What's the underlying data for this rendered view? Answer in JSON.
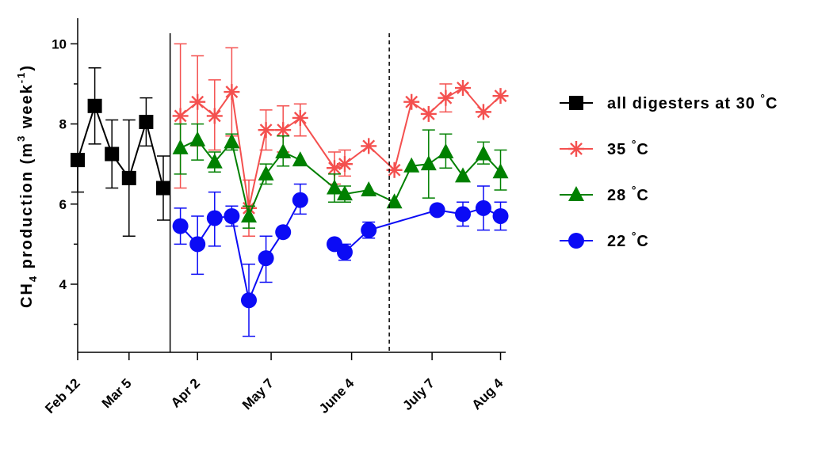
{
  "chart_data": {
    "type": "line",
    "ylabel_parts": [
      "CH",
      "4",
      " production (m",
      "3",
      " week",
      "-1",
      ")"
    ],
    "xlabel": "",
    "ylim": [
      2.3,
      10.6
    ],
    "yticks": [
      4,
      6,
      8,
      10
    ],
    "xlim": [
      0,
      25
    ],
    "xticks": [
      {
        "x": 0.0,
        "label": "Feb 12"
      },
      {
        "x": 3.0,
        "label": "Mar 5"
      },
      {
        "x": 7.0,
        "label": "Apr 2"
      },
      {
        "x": 11.3,
        "label": "May 7"
      },
      {
        "x": 16.0,
        "label": "June 4"
      },
      {
        "x": 20.7,
        "label": "July 7"
      },
      {
        "x": 24.7,
        "label": "Aug 4"
      }
    ],
    "vlines": [
      {
        "x": 5.4,
        "style": "solid"
      },
      {
        "x": 18.2,
        "style": "dashed"
      }
    ],
    "series": [
      {
        "name": "all digesters at 30 °C",
        "legend_text": "all digesters at 30",
        "legend_unit": "°C",
        "color": "#000000",
        "marker": "square",
        "segments": [
          [
            {
              "x": 0.0,
              "y": 7.1,
              "lo": 6.3,
              "hi": 7.1
            },
            {
              "x": 1.0,
              "y": 8.45,
              "lo": 7.5,
              "hi": 9.4
            },
            {
              "x": 2.0,
              "y": 7.25,
              "lo": 6.4,
              "hi": 8.1
            },
            {
              "x": 3.0,
              "y": 6.65,
              "lo": 5.2,
              "hi": 8.1
            },
            {
              "x": 4.0,
              "y": 8.05,
              "lo": 7.45,
              "hi": 8.65
            },
            {
              "x": 5.0,
              "y": 6.4,
              "lo": 5.6,
              "hi": 7.2
            }
          ]
        ]
      },
      {
        "name": "35 °C",
        "legend_text": "35",
        "legend_unit": "°C",
        "color": "#f4504f",
        "marker": "asterisk",
        "segments": [
          [
            {
              "x": 6.0,
              "y": 8.2,
              "lo": 6.4,
              "hi": 10.0
            },
            {
              "x": 7.0,
              "y": 8.55,
              "lo": 7.45,
              "hi": 9.7
            },
            {
              "x": 8.0,
              "y": 8.2,
              "lo": 7.35,
              "hi": 9.1
            },
            {
              "x": 9.0,
              "y": 8.8,
              "lo": 7.7,
              "hi": 9.9
            },
            {
              "x": 10.0,
              "y": 5.9,
              "lo": 5.2,
              "hi": 6.6
            },
            {
              "x": 11.0,
              "y": 7.85,
              "lo": 7.35,
              "hi": 8.35
            },
            {
              "x": 12.0,
              "y": 7.85,
              "lo": 7.3,
              "hi": 8.45
            },
            {
              "x": 13.0,
              "y": 8.15,
              "lo": 7.7,
              "hi": 8.5
            },
            {
              "x": 15.0,
              "y": 6.9,
              "lo": 6.5,
              "hi": 7.3
            },
            {
              "x": 15.6,
              "y": 7.0,
              "lo": 6.7,
              "hi": 7.35
            },
            {
              "x": 17.0,
              "y": 7.45,
              "lo": 7.45,
              "hi": 7.45
            },
            {
              "x": 18.5,
              "y": 6.85,
              "lo": 6.85,
              "hi": 6.85
            },
            {
              "x": 19.5,
              "y": 8.55,
              "lo": 8.55,
              "hi": 8.55
            },
            {
              "x": 20.5,
              "y": 8.25,
              "lo": 8.25,
              "hi": 8.25
            },
            {
              "x": 21.5,
              "y": 8.65,
              "lo": 8.3,
              "hi": 9.0
            },
            {
              "x": 22.5,
              "y": 8.9,
              "lo": 8.9,
              "hi": 8.9
            },
            {
              "x": 23.7,
              "y": 8.3,
              "lo": 8.3,
              "hi": 8.3
            },
            {
              "x": 24.7,
              "y": 8.7,
              "lo": 8.7,
              "hi": 8.7
            }
          ]
        ]
      },
      {
        "name": "28 °C",
        "legend_text": "28",
        "legend_unit": "°C",
        "color": "#008000",
        "marker": "triangle",
        "segments": [
          [
            {
              "x": 6.0,
              "y": 7.4,
              "lo": 6.75,
              "hi": 8.0
            },
            {
              "x": 7.0,
              "y": 7.6,
              "lo": 7.1,
              "hi": 8.0
            },
            {
              "x": 8.0,
              "y": 7.05,
              "lo": 6.8,
              "hi": 7.3
            },
            {
              "x": 9.0,
              "y": 7.55,
              "lo": 7.35,
              "hi": 7.75
            },
            {
              "x": 10.0,
              "y": 5.7,
              "lo": 5.4,
              "hi": 5.95
            },
            {
              "x": 11.0,
              "y": 6.75,
              "lo": 6.5,
              "hi": 7.0
            },
            {
              "x": 12.0,
              "y": 7.3,
              "lo": 6.95,
              "hi": 7.7
            },
            {
              "x": 13.0,
              "y": 7.1,
              "lo": 7.1,
              "hi": 7.1
            },
            {
              "x": 15.0,
              "y": 6.4,
              "lo": 6.05,
              "hi": 6.75
            },
            {
              "x": 15.6,
              "y": 6.25,
              "lo": 6.05,
              "hi": 6.45
            },
            {
              "x": 17.0,
              "y": 6.35,
              "lo": 6.35,
              "hi": 6.35
            },
            {
              "x": 18.5,
              "y": 6.05,
              "lo": 6.05,
              "hi": 6.05
            },
            {
              "x": 19.5,
              "y": 6.95,
              "lo": 6.95,
              "hi": 6.95
            },
            {
              "x": 20.5,
              "y": 7.0,
              "lo": 6.15,
              "hi": 7.85
            },
            {
              "x": 21.5,
              "y": 7.3,
              "lo": 6.9,
              "hi": 7.75
            },
            {
              "x": 22.5,
              "y": 6.7,
              "lo": 6.7,
              "hi": 6.7
            },
            {
              "x": 23.7,
              "y": 7.25,
              "lo": 7.0,
              "hi": 7.55
            },
            {
              "x": 24.7,
              "y": 6.8,
              "lo": 6.35,
              "hi": 7.35
            }
          ]
        ]
      },
      {
        "name": "22 °C",
        "legend_text": "22",
        "legend_unit": "°C",
        "color": "#0b0bf5",
        "marker": "circle",
        "segments": [
          [
            {
              "x": 6.0,
              "y": 5.45,
              "lo": 5.0,
              "hi": 5.9
            },
            {
              "x": 7.0,
              "y": 5.0,
              "lo": 4.25,
              "hi": 5.7
            },
            {
              "x": 8.0,
              "y": 5.65,
              "lo": 4.95,
              "hi": 6.3
            },
            {
              "x": 9.0,
              "y": 5.7,
              "lo": 5.45,
              "hi": 5.95
            },
            {
              "x": 10.0,
              "y": 3.6,
              "lo": 2.7,
              "hi": 4.5
            },
            {
              "x": 11.0,
              "y": 4.65,
              "lo": 4.05,
              "hi": 5.2
            },
            {
              "x": 12.0,
              "y": 5.3,
              "lo": 5.3,
              "hi": 5.3
            },
            {
              "x": 13.0,
              "y": 6.1,
              "lo": 5.75,
              "hi": 6.5
            }
          ],
          [
            {
              "x": 15.0,
              "y": 5.0,
              "lo": 5.0,
              "hi": 5.0
            },
            {
              "x": 15.6,
              "y": 4.8,
              "lo": 4.6,
              "hi": 5.0
            },
            {
              "x": 17.0,
              "y": 5.35,
              "lo": 5.15,
              "hi": 5.55
            },
            {
              "x": 21.0,
              "y": 5.85,
              "lo": 5.85,
              "hi": 5.85
            },
            {
              "x": 22.5,
              "y": 5.75,
              "lo": 5.45,
              "hi": 6.05
            },
            {
              "x": 23.7,
              "y": 5.9,
              "lo": 5.35,
              "hi": 6.45
            },
            {
              "x": 24.7,
              "y": 5.7,
              "lo": 5.35,
              "hi": 6.05
            }
          ]
        ]
      }
    ]
  }
}
